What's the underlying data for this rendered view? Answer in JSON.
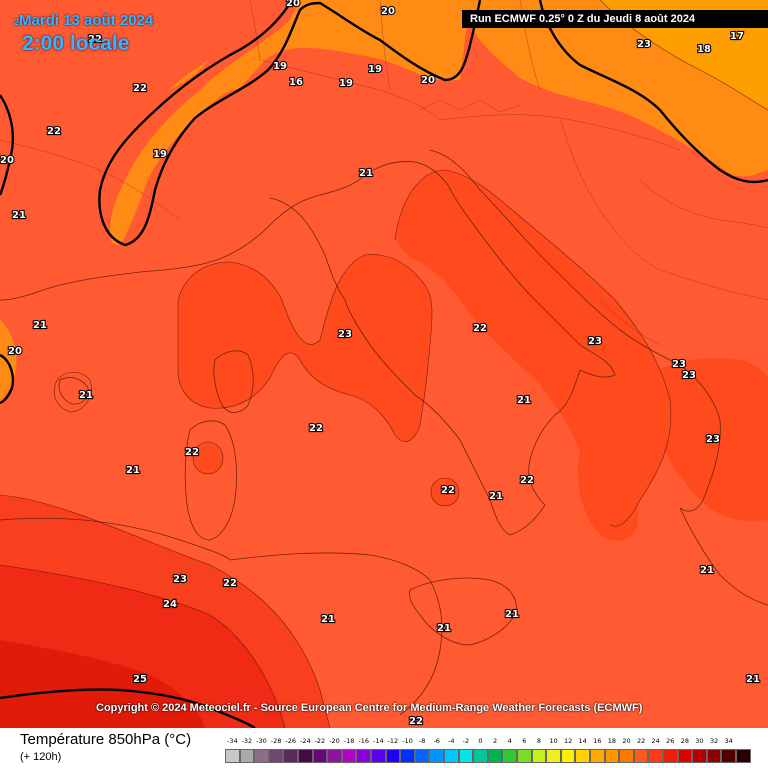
{
  "header": {
    "date": "Mardi 13 août 2024",
    "hour": "2:00 locale",
    "run": "Run ECMWF 0.25° 0 Z du Jeudi 8 août 2024",
    "date_prefix": "2"
  },
  "copyright": "Copyright © 2024 Meteociel.fr - Source European Centre for Medium-Range Weather Forecasts (ECMWF)",
  "legend": {
    "title": "Température 850hPa (°C)",
    "subtitle": "(+ 120h)",
    "scale": [
      {
        "label": "-34",
        "color": "#c8c8c8"
      },
      {
        "label": "-32",
        "color": "#aaaaaa"
      },
      {
        "label": "-30",
        "color": "#8c6e8c"
      },
      {
        "label": "-28",
        "color": "#6e466e"
      },
      {
        "label": "-26",
        "color": "#5a2a5a"
      },
      {
        "label": "-24",
        "color": "#460a46"
      },
      {
        "label": "-22",
        "color": "#640a78"
      },
      {
        "label": "-20",
        "color": "#8c14a0"
      },
      {
        "label": "-18",
        "color": "#b400c8"
      },
      {
        "label": "-16",
        "color": "#8c00dc"
      },
      {
        "label": "-14",
        "color": "#5a00f0"
      },
      {
        "label": "-12",
        "color": "#1e00ff"
      },
      {
        "label": "-10",
        "color": "#0032ff"
      },
      {
        "label": "-8",
        "color": "#0064ff"
      },
      {
        "label": "-6",
        "color": "#0096ff"
      },
      {
        "label": "-4",
        "color": "#00c8ff"
      },
      {
        "label": "-2",
        "color": "#00e6e6"
      },
      {
        "label": "0",
        "color": "#00c896"
      },
      {
        "label": "2",
        "color": "#00b450"
      },
      {
        "label": "4",
        "color": "#32c832"
      },
      {
        "label": "6",
        "color": "#78dc28"
      },
      {
        "label": "8",
        "color": "#c8f01e"
      },
      {
        "label": "10",
        "color": "#f0f01e"
      },
      {
        "label": "12",
        "color": "#fff000"
      },
      {
        "label": "14",
        "color": "#ffd200"
      },
      {
        "label": "16",
        "color": "#ffaa00"
      },
      {
        "label": "18",
        "color": "#ff9600"
      },
      {
        "label": "20",
        "color": "#ff7800"
      },
      {
        "label": "22",
        "color": "#ff5a1e"
      },
      {
        "label": "24",
        "color": "#ff3c14"
      },
      {
        "label": "26",
        "color": "#f01e0a"
      },
      {
        "label": "28",
        "color": "#dc0000"
      },
      {
        "label": "30",
        "color": "#b40000"
      },
      {
        "label": "32",
        "color": "#8c0000"
      },
      {
        "label": "34",
        "color": "#500000"
      },
      {
        "label": "",
        "color": "#280000"
      }
    ]
  },
  "colors": {
    "t18": "#ff9e00",
    "t20": "#ff8a14",
    "t21": "#ff5a32",
    "t23": "#ff4a1e",
    "t24": "#f52a14",
    "t25": "#e61e0a",
    "t26": "#d21400"
  },
  "isotherm_labels": [
    {
      "text": "20",
      "lon": "near Geneva"
    },
    {
      "text": "22"
    },
    {
      "text": "22"
    },
    {
      "text": "22"
    },
    {
      "text": "20"
    },
    {
      "text": "21"
    },
    {
      "text": "21"
    },
    {
      "text": "20"
    },
    {
      "text": "21"
    },
    {
      "text": "21"
    },
    {
      "text": "23"
    },
    {
      "text": "24"
    },
    {
      "text": "25"
    },
    {
      "text": "22"
    },
    {
      "text": "22"
    },
    {
      "text": "19"
    },
    {
      "text": "16"
    },
    {
      "text": "19"
    },
    {
      "text": "19"
    },
    {
      "text": "20"
    },
    {
      "text": "19"
    },
    {
      "text": "18"
    },
    {
      "text": "17"
    },
    {
      "text": "20"
    },
    {
      "text": "21"
    },
    {
      "text": "23"
    },
    {
      "text": "22"
    },
    {
      "text": "22"
    },
    {
      "text": "22"
    },
    {
      "text": "23"
    },
    {
      "text": "23"
    },
    {
      "text": "23"
    },
    {
      "text": "23"
    },
    {
      "text": "21"
    },
    {
      "text": "22"
    },
    {
      "text": "21"
    },
    {
      "text": "23"
    },
    {
      "text": "21"
    },
    {
      "text": "21"
    },
    {
      "text": "21"
    },
    {
      "text": "21"
    },
    {
      "text": "21"
    },
    {
      "text": "22"
    }
  ]
}
